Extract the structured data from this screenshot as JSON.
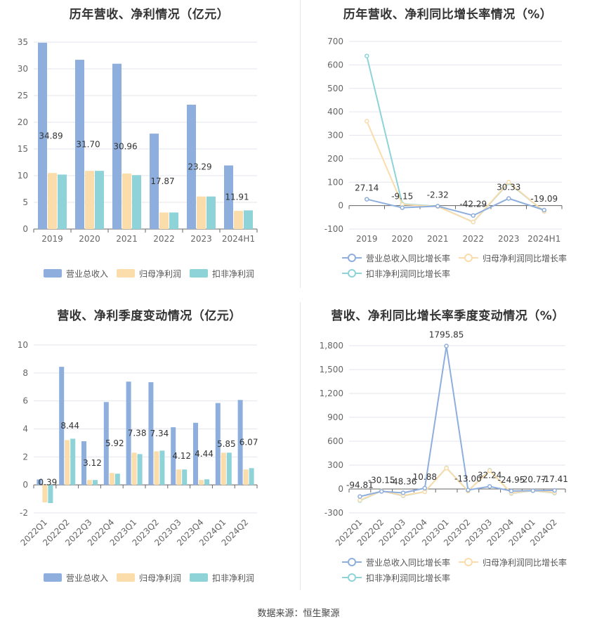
{
  "colors": {
    "revenue": "#8eaedd",
    "net_profit": "#fbdcab",
    "net_profit_ex": "#8dd3d8",
    "revenue_line": "#8eaedd",
    "net_profit_line": "#fbdcab",
    "net_profit_ex_line": "#8dd3d8"
  },
  "footer": "数据来源：恒生聚源",
  "chart_data": [
    {
      "type": "bar",
      "title": "历年营收、净利情况（亿元）",
      "categories": [
        "2019",
        "2020",
        "2021",
        "2022",
        "2023",
        "2024H1"
      ],
      "ylim": [
        0,
        35
      ],
      "yticks": [
        0,
        5,
        10,
        15,
        20,
        25,
        30,
        35
      ],
      "series": [
        {
          "name": "营业总收入",
          "values": [
            34.89,
            31.7,
            30.96,
            17.87,
            23.29,
            11.91
          ],
          "labels": [
            "34.89",
            "31.70",
            "30.96",
            "17.87",
            "23.29",
            "11.91"
          ]
        },
        {
          "name": "归母净利润",
          "values": [
            10.5,
            10.9,
            10.4,
            3.1,
            6.1,
            3.4
          ]
        },
        {
          "name": "扣非净利润",
          "values": [
            10.2,
            10.9,
            10.1,
            3.1,
            6.1,
            3.5
          ]
        }
      ],
      "legend_position": "bottom"
    },
    {
      "type": "line",
      "title": "历年营收、净利同比增长率情况（%）",
      "categories": [
        "2019",
        "2020",
        "2021",
        "2022",
        "2023",
        "2024H1"
      ],
      "ylim": [
        -100,
        700
      ],
      "yticks": [
        -100,
        0,
        100,
        200,
        300,
        400,
        500,
        600,
        700
      ],
      "series": [
        {
          "name": "营业总收入同比增长率",
          "values": [
            27.14,
            -9.15,
            -2.32,
            -42.29,
            30.33,
            -19.09
          ],
          "labels": [
            "27.14",
            "-9.15",
            "-2.32",
            "-42.29",
            "30.33",
            "-19.09"
          ]
        },
        {
          "name": "归母净利润同比增长率",
          "values": [
            360,
            5,
            -4,
            -70,
            100,
            -25
          ]
        },
        {
          "name": "扣非净利润同比增长率",
          "values": [
            638,
            7,
            -3,
            -70,
            97,
            -25
          ]
        }
      ],
      "legend_position": "bottom"
    },
    {
      "type": "bar",
      "title": "营收、净利季度变动情况（亿元）",
      "categories": [
        "2022Q1",
        "2022Q2",
        "2022Q3",
        "2022Q4",
        "2023Q1",
        "2023Q2",
        "2023Q3",
        "2023Q4",
        "2024Q1",
        "2024Q2"
      ],
      "ylim": [
        -2,
        10
      ],
      "yticks": [
        -2,
        0,
        2,
        4,
        6,
        8,
        10
      ],
      "series": [
        {
          "name": "营业总收入",
          "values": [
            0.39,
            8.44,
            3.12,
            5.92,
            7.38,
            7.34,
            4.12,
            4.44,
            5.85,
            6.07
          ],
          "labels": [
            "0.39",
            "8.44",
            "3.12",
            "5.92",
            "7.38",
            "7.34",
            "4.12",
            "4.44",
            "5.85",
            "6.07"
          ]
        },
        {
          "name": "归母净利润",
          "values": [
            -1.25,
            3.2,
            0.35,
            0.85,
            2.3,
            2.4,
            1.1,
            0.35,
            2.3,
            1.1
          ]
        },
        {
          "name": "扣非净利润",
          "values": [
            -1.3,
            3.3,
            0.35,
            0.8,
            2.2,
            2.45,
            1.1,
            0.4,
            2.3,
            1.2
          ]
        }
      ],
      "legend_position": "bottom"
    },
    {
      "type": "line",
      "title": "营收、净利同比增长率季度变动情况（%）",
      "categories": [
        "2022Q1",
        "2022Q2",
        "2022Q3",
        "2022Q4",
        "2023Q1",
        "2023Q2",
        "2023Q3",
        "2023Q4",
        "2024Q1",
        "2024Q2"
      ],
      "ylim": [
        -300,
        1800
      ],
      "yticks": [
        -300,
        0,
        300,
        600,
        900,
        1200,
        1500,
        1800
      ],
      "ytick_labels": [
        "-300",
        "0",
        "300",
        "600",
        "900",
        "1,200",
        "1,500",
        "1,800"
      ],
      "series": [
        {
          "name": "营业总收入同比增长率",
          "values": [
            -94.81,
            -30.15,
            -48.36,
            10.88,
            1795.85,
            -13.0,
            32.24,
            -24.95,
            -20.77,
            -17.41
          ],
          "labels": [
            "-94.81",
            "-30.15",
            "-48.36",
            "10.88",
            "1795.85",
            "-13.00",
            "32.24",
            "-24.95",
            "-20.77",
            "-17.41"
          ]
        },
        {
          "name": "归母净利润同比增长率",
          "values": [
            -140,
            -25,
            -80,
            -35,
            262,
            -25,
            230,
            -50,
            -20,
            -45
          ]
        },
        {
          "name": "扣非净利润同比增长率",
          "values": [
            -145,
            -25,
            -85,
            -35,
            265,
            -25,
            235,
            -55,
            -20,
            -50
          ]
        }
      ],
      "legend_position": "bottom"
    }
  ]
}
